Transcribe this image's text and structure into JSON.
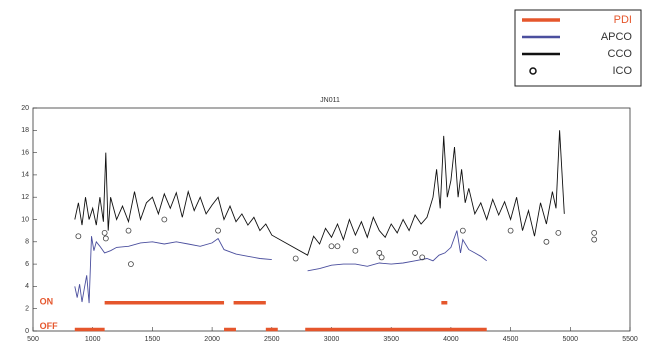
{
  "chart_data": {
    "type": "line",
    "title": "JN011",
    "xlim": [
      500,
      5500
    ],
    "xticks": [
      500,
      1000,
      1500,
      2000,
      2500,
      3000,
      3500,
      4000,
      4500,
      5000,
      5500
    ],
    "ylim": [
      0,
      20
    ],
    "yticks": [
      0,
      2,
      4,
      6,
      8,
      10,
      12,
      14,
      16,
      18,
      20
    ],
    "legend": "outside-top-right",
    "annotations": [
      {
        "text": "ON",
        "x": 530,
        "y": 2.4
      },
      {
        "text": "OFF",
        "x": 530,
        "y": 0.2
      }
    ],
    "series": [
      {
        "name": "PDI",
        "kind": "segments",
        "color": "#e5562c",
        "segments": [
          {
            "start": 850,
            "end": 1100,
            "value": 0
          },
          {
            "start": 1100,
            "end": 2100,
            "value": 2.4
          },
          {
            "start": 2100,
            "end": 2200,
            "value": 0
          },
          {
            "start": 2180,
            "end": 2450,
            "value": 2.4
          },
          {
            "start": 2450,
            "end": 2550,
            "value": 0
          },
          {
            "start": 2780,
            "end": 4300,
            "value": 0
          },
          {
            "start": 3920,
            "end": 3970,
            "value": 2.4
          }
        ]
      },
      {
        "name": "APCO",
        "kind": "line",
        "color": "#4b4f9e",
        "x": [
          850,
          870,
          890,
          910,
          930,
          950,
          970,
          990,
          1010,
          1030,
          1060,
          1100,
          1150,
          1200,
          1300,
          1400,
          1500,
          1600,
          1700,
          1800,
          1900,
          2000,
          2050,
          2100,
          2200,
          2300,
          2400,
          2500,
          null,
          2800,
          2900,
          3000,
          3100,
          3200,
          3300,
          3400,
          3500,
          3600,
          3700,
          3800,
          3850,
          3900,
          3950,
          4000,
          4050,
          4080,
          4100,
          4150,
          4200,
          4250,
          4300
        ],
        "values": [
          4,
          3,
          4.2,
          2.6,
          3.8,
          5,
          2.5,
          8.5,
          7.2,
          8,
          7.6,
          7,
          7.2,
          7.5,
          7.6,
          7.9,
          8,
          7.8,
          8,
          7.8,
          7.6,
          7.9,
          8.3,
          7.3,
          6.9,
          6.7,
          6.5,
          6.4,
          null,
          5.4,
          5.6,
          5.9,
          6,
          6,
          5.8,
          6.1,
          6,
          6.1,
          6.3,
          6.5,
          6.3,
          6.8,
          7,
          7.5,
          9,
          7,
          8.2,
          7.3,
          7,
          6.7,
          6.3
        ]
      },
      {
        "name": "CCO",
        "kind": "line",
        "color": "#111111",
        "x": [
          850,
          880,
          910,
          940,
          970,
          1000,
          1030,
          1060,
          1090,
          1110,
          1130,
          1150,
          1200,
          1250,
          1300,
          1350,
          1400,
          1450,
          1500,
          1550,
          1600,
          1650,
          1700,
          1750,
          1800,
          1850,
          1900,
          1950,
          2000,
          2050,
          2100,
          2150,
          2200,
          2250,
          2300,
          2350,
          2400,
          2450,
          2500,
          2800,
          2850,
          2900,
          2950,
          3000,
          3050,
          3100,
          3150,
          3200,
          3250,
          3300,
          3350,
          3400,
          3450,
          3500,
          3550,
          3600,
          3650,
          3700,
          3750,
          3800,
          3850,
          3880,
          3910,
          3940,
          3970,
          4000,
          4030,
          4060,
          4090,
          4120,
          4150,
          4200,
          4250,
          4300,
          4350,
          4400,
          4450,
          4500,
          4550,
          4600,
          4650,
          4700,
          4750,
          4800,
          4850,
          4880,
          4910,
          4950
        ],
        "values": [
          10,
          11.5,
          9.5,
          12,
          10,
          11,
          9.5,
          12,
          9.8,
          16,
          9,
          12,
          10,
          11.2,
          9.8,
          12.5,
          10,
          11.5,
          12,
          10.5,
          12.3,
          11,
          12.4,
          10.2,
          12.5,
          10.8,
          12,
          10.5,
          11.3,
          12,
          10,
          11.2,
          9.8,
          10.5,
          9.5,
          10.2,
          9,
          9.6,
          8.6,
          6.8,
          8.5,
          7.8,
          9.2,
          8.4,
          9.6,
          8.2,
          10,
          8.6,
          9.8,
          8.4,
          10.2,
          9,
          8.4,
          9.6,
          8.8,
          10,
          9,
          10.4,
          9.6,
          10.2,
          12,
          14.5,
          11,
          17.5,
          12,
          13.5,
          16.5,
          12,
          14.5,
          11.5,
          12.8,
          10.5,
          11.5,
          10,
          11.8,
          10.4,
          11.6,
          10,
          12,
          9,
          10.8,
          8.5,
          11.5,
          9.6,
          12.5,
          11,
          18,
          10.5
        ]
      },
      {
        "name": "ICO",
        "kind": "scatter",
        "color": "#444444",
        "x": [
          880,
          1100,
          1110,
          1300,
          1320,
          1600,
          2050,
          2700,
          3000,
          3050,
          3200,
          3400,
          3420,
          3700,
          3760,
          4100,
          4500,
          4800,
          4900,
          5200,
          5200
        ],
        "values": [
          8.5,
          8.8,
          8.3,
          9,
          6,
          10,
          9,
          6.5,
          7.6,
          7.6,
          7.2,
          7,
          6.6,
          7,
          6.6,
          9,
          9,
          8,
          8.8,
          8.8,
          8.2
        ]
      }
    ]
  }
}
